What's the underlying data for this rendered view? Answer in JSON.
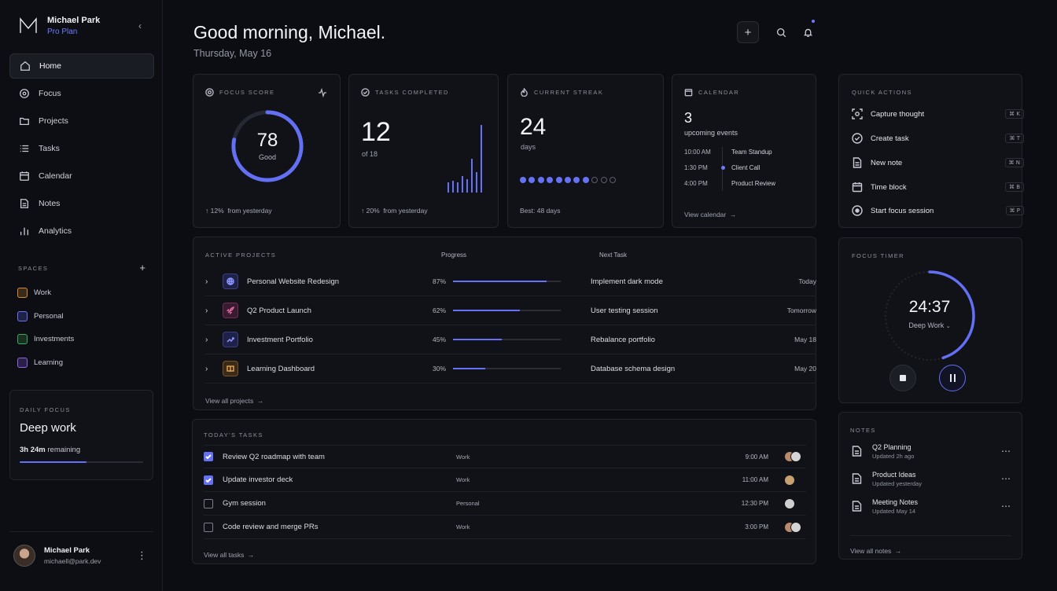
{
  "brand": {
    "name": "Michael Park",
    "plan": "Pro Plan"
  },
  "nav": [
    {
      "label": "Home",
      "icon": "home-icon"
    },
    {
      "label": "Focus",
      "icon": "focus-icon"
    },
    {
      "label": "Projects",
      "icon": "folder-icon"
    },
    {
      "label": "Tasks",
      "icon": "list-icon"
    },
    {
      "label": "Calendar",
      "icon": "calendar-icon"
    },
    {
      "label": "Notes",
      "icon": "note-icon"
    },
    {
      "label": "Analytics",
      "icon": "chart-icon"
    }
  ],
  "spaces": {
    "title": "SPACES",
    "items": [
      {
        "label": "Work",
        "color": "#d08a3a"
      },
      {
        "label": "Personal",
        "color": "#6b74f0"
      },
      {
        "label": "Investments",
        "color": "#3fa864"
      },
      {
        "label": "Learning",
        "color": "#8a6ae0"
      }
    ]
  },
  "daily_focus": {
    "label": "DAILY FOCUS",
    "title": "Deep work",
    "remaining_value": "3h 24m",
    "remaining_label": "remaining",
    "progress": 0.54
  },
  "user": {
    "name": "Michael Park",
    "email": "michaell@park.dev"
  },
  "header": {
    "greeting": "Good morning, Michael.",
    "date": "Thursday, May 16"
  },
  "focus_score": {
    "label": "FOCUS SCORE",
    "value": "78",
    "rating": "Good",
    "score": 78,
    "delta": "12%",
    "delta_label": "from yesterday"
  },
  "tasks_completed": {
    "label": "TASKS COMPLETED",
    "value": "12",
    "of": "of 18",
    "delta": "20%",
    "delta_label": "from yesterday",
    "bars": [
      0.15,
      0.18,
      0.15,
      0.25,
      0.2,
      0.5,
      0.3,
      1.0
    ]
  },
  "streak": {
    "label": "CURRENT STREAK",
    "value": "24",
    "unit": "days",
    "best": "Best: 48 days",
    "filled": 8,
    "total": 11
  },
  "calendar": {
    "label": "CALENDAR",
    "count": "3",
    "count_label": "upcoming events",
    "events": [
      {
        "time": "10:00 AM",
        "title": "Team Standup"
      },
      {
        "time": "1:30 PM",
        "title": "Client Call"
      },
      {
        "time": "4:00 PM",
        "title": "Product Review"
      }
    ],
    "link": "View calendar"
  },
  "quick_actions": {
    "label": "QUICK ACTIONS",
    "items": [
      {
        "label": "Capture thought",
        "key": "⌘ K"
      },
      {
        "label": "Create task",
        "key": "⌘ T"
      },
      {
        "label": "New note",
        "key": "⌘ N"
      },
      {
        "label": "Time block",
        "key": "⌘ B"
      },
      {
        "label": "Start focus session",
        "key": "⌘ P"
      }
    ]
  },
  "projects": {
    "label": "ACTIVE PROJECTS",
    "col_progress": "Progress",
    "col_next": "Next Task",
    "rows": [
      {
        "name": "Personal Website Redesign",
        "pct": "87%",
        "progress": 0.87,
        "next": "Implement dark mode",
        "due": "Today",
        "color": "#6b74f0"
      },
      {
        "name": "Q2 Product Launch",
        "pct": "62%",
        "progress": 0.62,
        "next": "User testing session",
        "due": "Tomorrow",
        "color": "#c44a8a"
      },
      {
        "name": "Investment Portfolio",
        "pct": "45%",
        "progress": 0.45,
        "next": "Rebalance portfolio",
        "due": "May 18",
        "color": "#6b74f0"
      },
      {
        "name": "Learning Dashboard",
        "pct": "30%",
        "progress": 0.3,
        "next": "Database schema design",
        "due": "May 20",
        "color": "#d08a3a"
      }
    ],
    "link": "View all projects"
  },
  "focus_timer": {
    "label": "FOCUS TIMER",
    "time": "24:37",
    "mode": "Deep Work",
    "progress": 0.45
  },
  "tasks": {
    "label": "TODAY'S TASKS",
    "rows": [
      {
        "name": "Review Q2 roadmap with team",
        "tag": "Work",
        "time": "9:00 AM",
        "done": true,
        "faces": 2
      },
      {
        "name": "Update investor deck",
        "tag": "Work",
        "time": "11:00 AM",
        "done": true,
        "faces": 1
      },
      {
        "name": "Gym session",
        "tag": "Personal",
        "time": "12:30 PM",
        "done": false,
        "faces": 1
      },
      {
        "name": "Code review and merge PRs",
        "tag": "Work",
        "time": "3:00 PM",
        "done": false,
        "faces": 2
      }
    ],
    "link": "View all tasks"
  },
  "notes": {
    "label": "NOTES",
    "items": [
      {
        "title": "Q2 Planning",
        "sub": "Updated 2h ago"
      },
      {
        "title": "Product Ideas",
        "sub": "Updated yesterday"
      },
      {
        "title": "Meeting Notes",
        "sub": "Updated May 14"
      }
    ],
    "link": "View all notes"
  }
}
